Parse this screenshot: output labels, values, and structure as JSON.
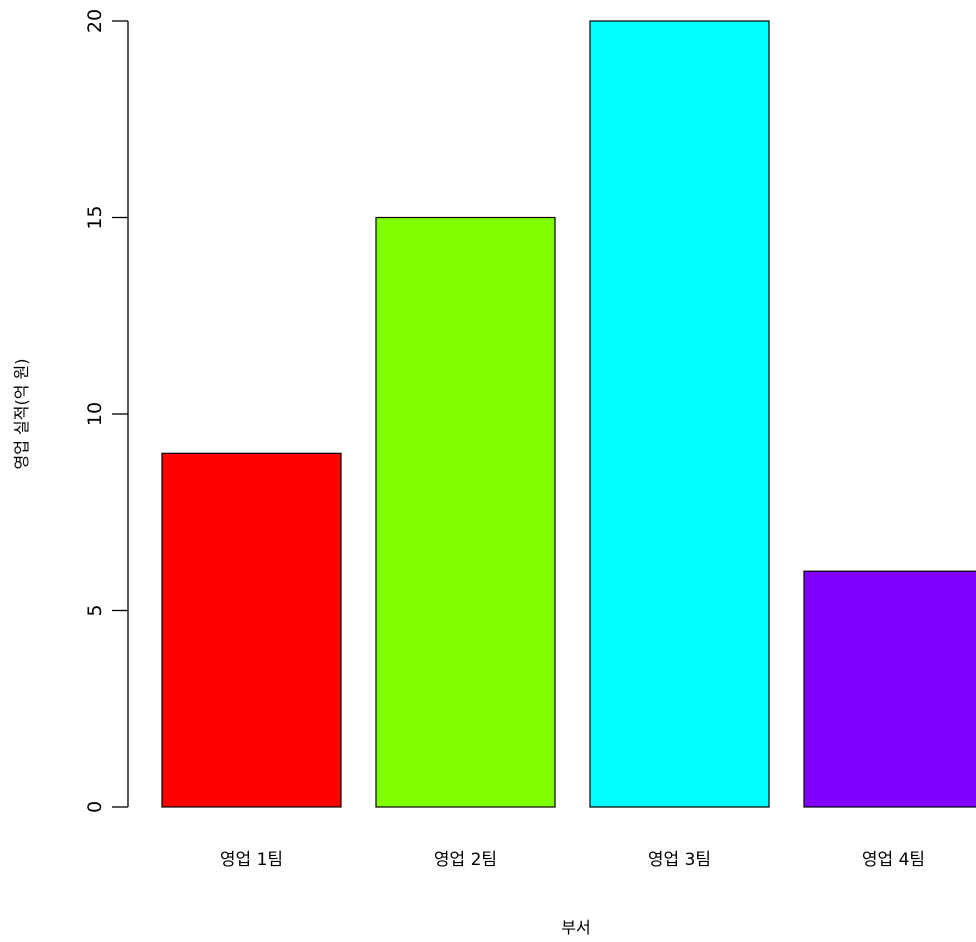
{
  "chart_data": {
    "type": "bar",
    "title": "",
    "xlabel": "부서",
    "ylabel": "영업 실적(억 원)",
    "categories": [
      "영업 1팀",
      "영업 2팀",
      "영업 3팀",
      "영업 4팀"
    ],
    "values": [
      9,
      15,
      20,
      6
    ],
    "colors": [
      "#FF0000",
      "#80FF00",
      "#00FFFF",
      "#8000FF"
    ],
    "ylim": [
      0,
      20
    ],
    "yticks": [
      "0",
      "5",
      "10",
      "15",
      "20"
    ],
    "grid": false,
    "legend": "none"
  }
}
